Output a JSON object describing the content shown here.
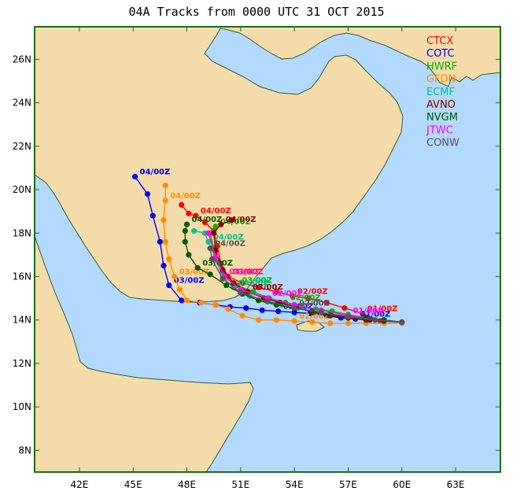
{
  "title": "04A Tracks from 0000 UTC 31 OCT 2015",
  "colors": {
    "sea": "#b3d9ff",
    "land": "#f4dcaa",
    "coast": "#2f5f2f",
    "frame": "#1a6b1a"
  },
  "map_extent": {
    "lon": [
      39.5,
      65.5
    ],
    "lat": [
      7,
      27.5
    ]
  },
  "lat_ticks": [
    {
      "value": 26,
      "label": "26N"
    },
    {
      "value": 24,
      "label": "24N"
    },
    {
      "value": 22,
      "label": "22N"
    },
    {
      "value": 20,
      "label": "20N"
    },
    {
      "value": 18,
      "label": "18N"
    },
    {
      "value": 16,
      "label": "16N"
    },
    {
      "value": 14,
      "label": "14N"
    },
    {
      "value": 12,
      "label": "12N"
    },
    {
      "value": 10,
      "label": "10N"
    },
    {
      "value": 8,
      "label": "8N"
    }
  ],
  "lon_ticks": [
    {
      "value": 42,
      "label": "42E"
    },
    {
      "value": 45,
      "label": "45E"
    },
    {
      "value": 48,
      "label": "48E"
    },
    {
      "value": 51,
      "label": "51E"
    },
    {
      "value": 54,
      "label": "54E"
    },
    {
      "value": 57,
      "label": "57E"
    },
    {
      "value": 60,
      "label": "60E"
    },
    {
      "value": 63,
      "label": "63E"
    }
  ],
  "legend": [
    {
      "name": "CTCX",
      "color": "#ff0000"
    },
    {
      "name": "COTC",
      "color": "#0000ff"
    },
    {
      "name": "HWRF",
      "color": "#00b400"
    },
    {
      "name": "GFDN",
      "color": "#ff8c00"
    },
    {
      "name": "ECMF",
      "color": "#00c88c"
    },
    {
      "name": "AVNO",
      "color": "#8b0000"
    },
    {
      "name": "NVGM",
      "color": "#005a00"
    },
    {
      "name": "JTWC",
      "color": "#ff00ff"
    },
    {
      "name": "CONW",
      "color": "#555555"
    }
  ],
  "tracks": [
    {
      "name": "CTCX",
      "color": "#ff0000",
      "points": [
        [
          60.0,
          13.9
        ],
        [
          58.8,
          13.95
        ],
        [
          57.8,
          14.3
        ],
        [
          56.8,
          14.55
        ],
        [
          55.8,
          14.8
        ],
        [
          54.8,
          15.0
        ],
        [
          53.9,
          15.1
        ],
        [
          53.0,
          15.3
        ],
        [
          52.0,
          15.5
        ],
        [
          51.1,
          15.7
        ],
        [
          50.3,
          16.0
        ],
        [
          49.9,
          16.6
        ],
        [
          49.7,
          17.4
        ],
        [
          49.5,
          18.1
        ],
        [
          49.0,
          18.5
        ],
        [
          48.5,
          18.8
        ],
        [
          48.1,
          18.9
        ],
        [
          47.7,
          19.3
        ]
      ],
      "labels": [
        {
          "text": "01/00Z",
          "lon": 57.8,
          "lat": 14.3
        },
        {
          "text": "02/00Z",
          "lon": 53.9,
          "lat": 15.1
        },
        {
          "text": "03/00Z",
          "lon": 50.3,
          "lat": 16.0
        },
        {
          "text": "04/00Z",
          "lon": 48.5,
          "lat": 18.8
        }
      ]
    },
    {
      "name": "COTC",
      "color": "#0000ff",
      "points": [
        [
          60.0,
          13.9
        ],
        [
          59.0,
          13.95
        ],
        [
          58.2,
          14.0
        ],
        [
          57.4,
          14.05
        ],
        [
          56.6,
          14.1
        ],
        [
          55.8,
          14.2
        ],
        [
          54.9,
          14.3
        ],
        [
          54.0,
          14.35
        ],
        [
          53.1,
          14.4
        ],
        [
          52.2,
          14.45
        ],
        [
          51.3,
          14.55
        ],
        [
          50.4,
          14.6
        ],
        [
          49.6,
          14.7
        ],
        [
          48.7,
          14.8
        ],
        [
          47.7,
          14.9
        ],
        [
          47.0,
          15.6
        ],
        [
          46.7,
          16.5
        ],
        [
          46.5,
          17.6
        ],
        [
          46.1,
          18.8
        ],
        [
          45.8,
          19.8
        ],
        [
          45.1,
          20.6
        ]
      ],
      "labels": [
        {
          "text": "01/00Z",
          "lon": 57.4,
          "lat": 14.05
        },
        {
          "text": "02/00Z",
          "lon": 53.1,
          "lat": 14.4
        },
        {
          "text": "03/00Z",
          "lon": 47.0,
          "lat": 15.6
        },
        {
          "text": "04/00Z",
          "lon": 45.1,
          "lat": 20.6
        }
      ]
    },
    {
      "name": "HWRF",
      "color": "#00b400",
      "points": [
        [
          60.0,
          13.9
        ],
        [
          59.0,
          14.0
        ],
        [
          58.0,
          14.1
        ],
        [
          57.0,
          14.25
        ],
        [
          56.1,
          14.4
        ],
        [
          55.2,
          14.5
        ],
        [
          54.4,
          14.65
        ],
        [
          53.5,
          14.8
        ],
        [
          52.6,
          15.0
        ],
        [
          51.7,
          15.3
        ],
        [
          50.8,
          15.6
        ],
        [
          50.0,
          16.2
        ],
        [
          49.5,
          17.3
        ],
        [
          49.3,
          18.0
        ],
        [
          49.6,
          18.3
        ]
      ],
      "labels": [
        {
          "text": "02/00Z",
          "lon": 53.5,
          "lat": 14.8
        },
        {
          "text": "03/00Z",
          "lon": 50.8,
          "lat": 15.6
        },
        {
          "text": "04/00Z",
          "lon": 49.6,
          "lat": 18.3
        }
      ]
    },
    {
      "name": "GFDN",
      "color": "#ff8c00",
      "points": [
        [
          60.0,
          13.85
        ],
        [
          59.0,
          13.85
        ],
        [
          58.0,
          13.85
        ],
        [
          57.0,
          13.85
        ],
        [
          56.0,
          13.85
        ],
        [
          55.0,
          13.9
        ],
        [
          54.0,
          13.95
        ],
        [
          53.0,
          14.0
        ],
        [
          52.0,
          14.0
        ],
        [
          51.1,
          14.2
        ],
        [
          50.3,
          14.5
        ],
        [
          49.6,
          14.7
        ],
        [
          48.8,
          14.8
        ],
        [
          48.0,
          14.9
        ],
        [
          47.6,
          15.4
        ],
        [
          47.3,
          16.0
        ],
        [
          47.0,
          16.8
        ],
        [
          46.8,
          17.6
        ],
        [
          46.7,
          18.6
        ],
        [
          46.8,
          19.5
        ],
        [
          46.8,
          20.2
        ]
      ],
      "labels": [
        {
          "text": "02/00Z",
          "lon": 54.0,
          "lat": 13.95
        },
        {
          "text": "03/00Z",
          "lon": 47.3,
          "lat": 16.0
        },
        {
          "text": "04/00Z",
          "lon": 46.8,
          "lat": 19.5
        }
      ]
    },
    {
      "name": "ECMF",
      "color": "#00c88c",
      "points": [
        [
          60.0,
          13.9
        ],
        [
          59.0,
          13.95
        ],
        [
          58.0,
          14.0
        ],
        [
          57.0,
          14.1
        ],
        [
          56.0,
          14.25
        ],
        [
          55.1,
          14.4
        ],
        [
          54.2,
          14.55
        ],
        [
          53.3,
          14.7
        ],
        [
          52.4,
          14.9
        ],
        [
          51.5,
          15.1
        ],
        [
          50.6,
          15.5
        ],
        [
          50.0,
          16.0
        ],
        [
          49.6,
          16.8
        ],
        [
          49.2,
          17.6
        ],
        [
          49.0,
          18.0
        ],
        [
          48.4,
          18.1
        ]
      ],
      "labels": [
        {
          "text": "03/00Z",
          "lon": 50.6,
          "lat": 15.5
        },
        {
          "text": "04/00Z",
          "lon": 49.2,
          "lat": 17.6
        }
      ]
    },
    {
      "name": "AVNO",
      "color": "#8b0000",
      "points": [
        [
          60.0,
          13.9
        ],
        [
          59.0,
          13.95
        ],
        [
          58.0,
          14.0
        ],
        [
          57.0,
          14.1
        ],
        [
          56.0,
          14.2
        ],
        [
          55.0,
          14.35
        ],
        [
          54.1,
          14.6
        ],
        [
          53.2,
          14.8
        ],
        [
          52.3,
          15.0
        ],
        [
          51.4,
          15.3
        ],
        [
          50.6,
          15.7
        ],
        [
          50.0,
          16.3
        ],
        [
          49.6,
          17.2
        ],
        [
          49.5,
          18.0
        ],
        [
          49.9,
          18.4
        ],
        [
          50.5,
          18.6
        ]
      ],
      "labels": [
        {
          "text": "03/00Z",
          "lon": 51.4,
          "lat": 15.3
        },
        {
          "text": "04/00Z",
          "lon": 49.9,
          "lat": 18.4
        }
      ]
    },
    {
      "name": "NVGM",
      "color": "#005a00",
      "points": [
        [
          60.0,
          13.9
        ],
        [
          59.0,
          14.0
        ],
        [
          58.0,
          14.1
        ],
        [
          57.0,
          14.15
        ],
        [
          56.0,
          14.25
        ],
        [
          55.0,
          14.4
        ],
        [
          54.0,
          14.55
        ],
        [
          53.0,
          14.7
        ],
        [
          52.0,
          14.9
        ],
        [
          51.1,
          15.2
        ],
        [
          50.2,
          15.6
        ],
        [
          49.3,
          16.1
        ],
        [
          48.6,
          16.4
        ],
        [
          48.1,
          17.0
        ],
        [
          47.9,
          17.6
        ],
        [
          47.9,
          18.1
        ],
        [
          48.0,
          18.4
        ]
      ],
      "labels": [
        {
          "text": "03/00Z",
          "lon": 48.6,
          "lat": 16.4
        },
        {
          "text": "04/00Z",
          "lon": 48.0,
          "lat": 18.4
        }
      ]
    },
    {
      "name": "JTWC",
      "color": "#ff00ff",
      "points": [
        [
          60.0,
          13.9
        ],
        [
          58.5,
          14.0
        ],
        [
          57.0,
          14.2
        ],
        [
          55.5,
          14.45
        ],
        [
          54.0,
          14.7
        ],
        [
          52.5,
          15.0
        ],
        [
          51.0,
          15.4
        ],
        [
          50.1,
          16.0
        ],
        [
          49.6,
          16.9
        ],
        [
          49.2,
          18.0
        ]
      ],
      "labels": [
        {
          "text": "01/00Z",
          "lon": 57.0,
          "lat": 14.2
        },
        {
          "text": "02/00Z",
          "lon": 52.5,
          "lat": 15.0
        },
        {
          "text": "03/00Z",
          "lon": 50.1,
          "lat": 16.0
        }
      ]
    },
    {
      "name": "CONW",
      "color": "#555555",
      "points": [
        [
          60.0,
          13.9
        ],
        [
          58.5,
          14.0
        ],
        [
          57.0,
          14.15
        ],
        [
          55.5,
          14.35
        ],
        [
          54.0,
          14.55
        ],
        [
          52.5,
          14.85
        ],
        [
          51.0,
          15.25
        ],
        [
          50.0,
          15.9
        ],
        [
          49.4,
          16.8
        ],
        [
          49.3,
          17.3
        ]
      ],
      "labels": [
        {
          "text": "02/00Z",
          "lon": 54.0,
          "lat": 14.55
        },
        {
          "text": "04/00Z",
          "lon": 49.3,
          "lat": 17.3
        }
      ]
    }
  ]
}
